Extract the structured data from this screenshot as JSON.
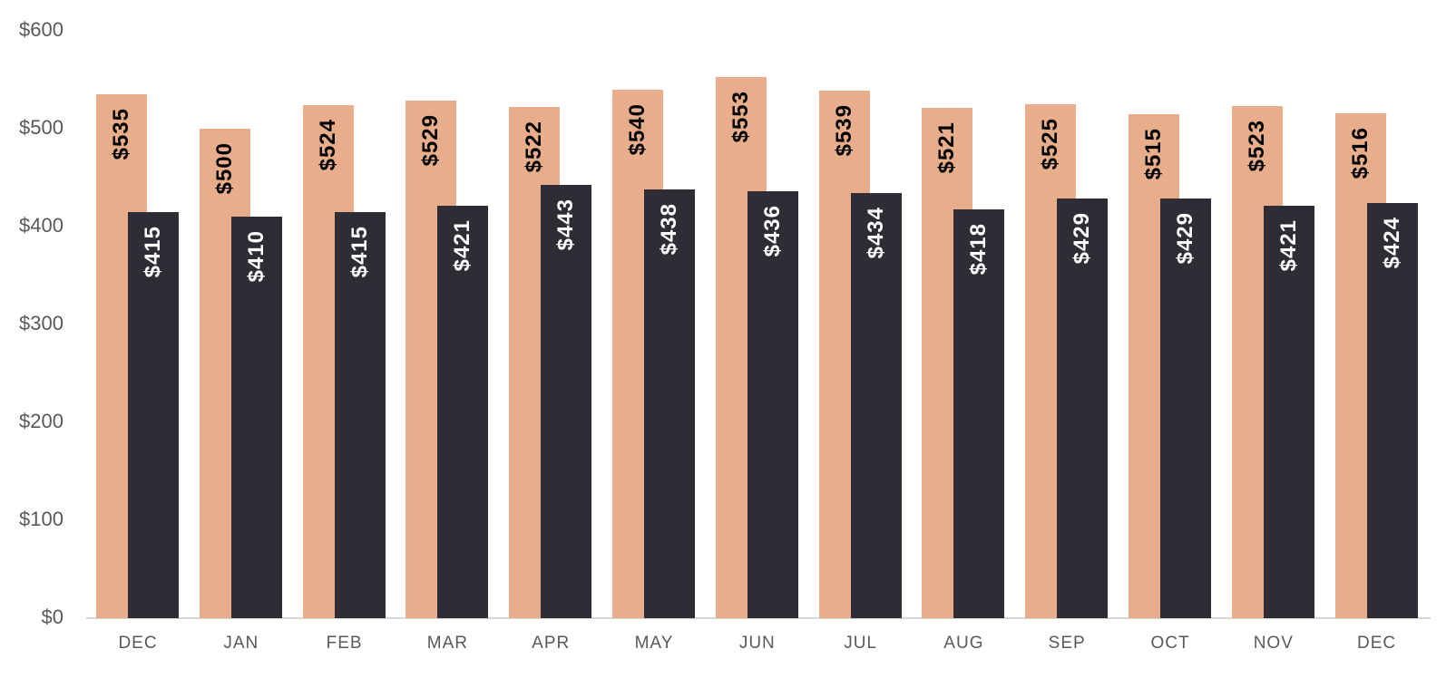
{
  "chart_data": {
    "type": "bar",
    "layout": "overlapping-bars",
    "title": "",
    "xlabel": "",
    "ylabel": "",
    "categories": [
      "DEC",
      "JAN",
      "FEB",
      "MAR",
      "APR",
      "MAY",
      "JUN",
      "JUL",
      "AUG",
      "SEP",
      "OCT",
      "NOV",
      "DEC"
    ],
    "series": [
      {
        "name": "series-peach",
        "color": "#e8ae8c",
        "label_color": "#000000",
        "values": [
          535,
          500,
          524,
          529,
          522,
          540,
          553,
          539,
          521,
          525,
          515,
          523,
          516
        ],
        "labels": [
          "$535",
          "$500",
          "$524",
          "$529",
          "$522",
          "$540",
          "$553",
          "$539",
          "$521",
          "$525",
          "$515",
          "$523",
          "$516"
        ]
      },
      {
        "name": "series-dark",
        "color": "#2e2d35",
        "label_color": "#ffffff",
        "values": [
          415,
          410,
          415,
          421,
          443,
          438,
          436,
          434,
          418,
          429,
          429,
          421,
          424
        ],
        "labels": [
          "$415",
          "$410",
          "$415",
          "$421",
          "$443",
          "$438",
          "$436",
          "$434",
          "$418",
          "$429",
          "$429",
          "$421",
          "$424"
        ]
      }
    ],
    "value_prefix": "$",
    "ylim": [
      0,
      600
    ],
    "yticks": [
      0,
      100,
      200,
      300,
      400,
      500,
      600
    ],
    "ytick_labels": [
      "$0",
      "$100",
      "$200",
      "$300",
      "$400",
      "$500",
      "$600"
    ],
    "grid": false,
    "legend_position": "none",
    "colors": {
      "background": "#ffffff",
      "axis_line": "#d6d6d6",
      "tick_text": "#595959"
    }
  }
}
